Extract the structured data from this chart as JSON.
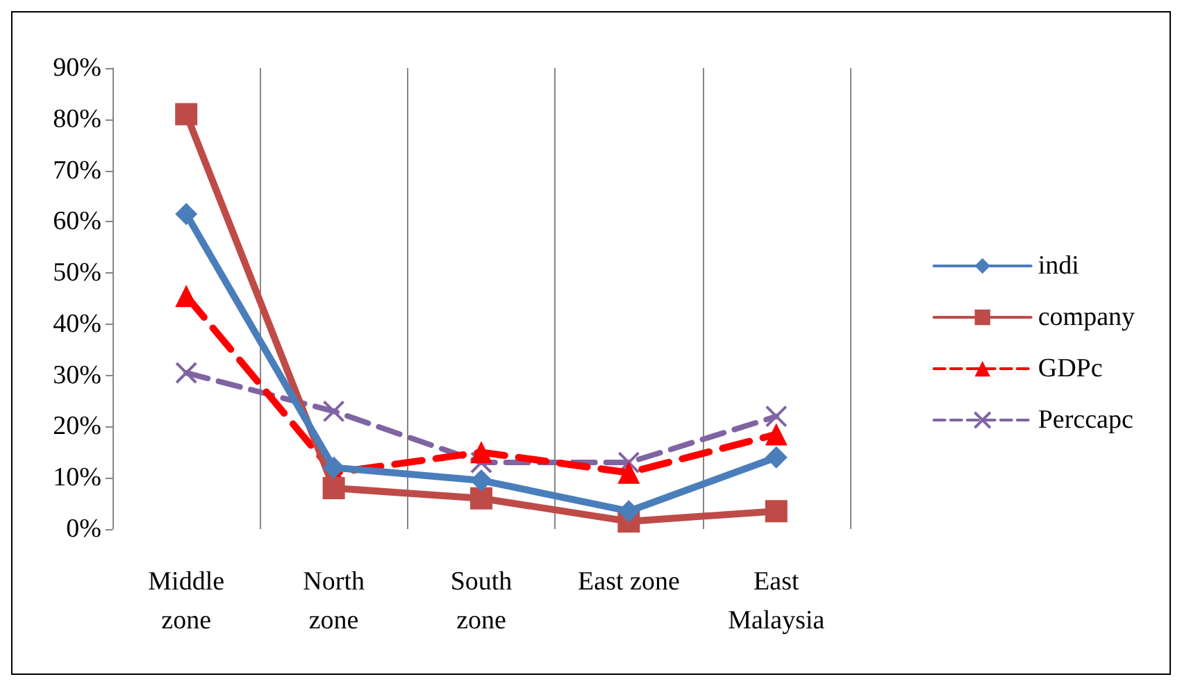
{
  "chart_data": {
    "type": "line",
    "categories": [
      "Middle\nzone",
      "North\nzone",
      "South\nzone",
      "East zone",
      "East\nMalaysia"
    ],
    "series": [
      {
        "name": "indi",
        "color": "#4a7ebb",
        "marker": "diamond",
        "line_style": "solid",
        "values": [
          61.5,
          12,
          9.5,
          3.5,
          14
        ]
      },
      {
        "name": "company",
        "color": "#be4b48",
        "marker": "square",
        "line_style": "solid",
        "values": [
          81,
          8,
          6,
          1.5,
          3.5
        ]
      },
      {
        "name": "GDPc",
        "color": "#ff0000",
        "marker": "triangle",
        "line_style": "dashed",
        "values": [
          45.5,
          11,
          15,
          11,
          18.5
        ]
      },
      {
        "name": "Perccapc",
        "color": "#8064a2",
        "marker": "cross",
        "line_style": "dashed",
        "values": [
          30.5,
          23,
          13,
          13,
          22
        ]
      }
    ],
    "ylim": [
      0,
      90
    ],
    "yticks": [
      {
        "value": 0,
        "label": "0%"
      },
      {
        "value": 10,
        "label": "10%"
      },
      {
        "value": 20,
        "label": "20%"
      },
      {
        "value": 30,
        "label": "30%"
      },
      {
        "value": 40,
        "label": "40%"
      },
      {
        "value": 50,
        "label": "50%"
      },
      {
        "value": 60,
        "label": "60%"
      },
      {
        "value": 70,
        "label": "70%"
      },
      {
        "value": 80,
        "label": "80%"
      },
      {
        "value": 90,
        "label": "90%"
      }
    ],
    "grid": "x",
    "legend": "right"
  }
}
